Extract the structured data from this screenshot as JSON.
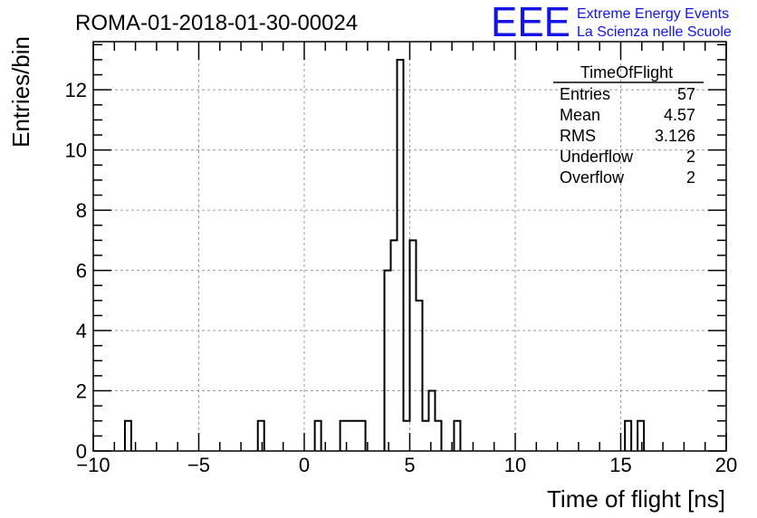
{
  "chart_data": {
    "type": "bar",
    "histogram": true,
    "title": "ROMA-01-2018-01-30-00024",
    "xlabel": "Time of flight [ns]",
    "ylabel": "Entries/bin",
    "xlim": [
      -10,
      20
    ],
    "ylim": [
      0,
      13.6
    ],
    "grid": true,
    "x_tick_labels": [
      "−10",
      "−5",
      "0",
      "5",
      "10",
      "15",
      "20"
    ],
    "y_tick_labels": [
      "0",
      "2",
      "4",
      "6",
      "8",
      "10",
      "12"
    ],
    "bin_width": 0.3,
    "bins": [
      {
        "x": -8.5,
        "value": 1
      },
      {
        "x": -2.2,
        "value": 1
      },
      {
        "x": 0.5,
        "value": 1
      },
      {
        "x": 1.7,
        "value": 1
      },
      {
        "x": 2.0,
        "value": 1
      },
      {
        "x": 2.3,
        "value": 1
      },
      {
        "x": 2.6,
        "value": 1
      },
      {
        "x": 3.8,
        "value": 6
      },
      {
        "x": 4.1,
        "value": 7
      },
      {
        "x": 4.4,
        "value": 13
      },
      {
        "x": 4.7,
        "value": 1
      },
      {
        "x": 5.0,
        "value": 7
      },
      {
        "x": 5.3,
        "value": 5
      },
      {
        "x": 5.6,
        "value": 1
      },
      {
        "x": 5.9,
        "value": 2
      },
      {
        "x": 6.2,
        "value": 1
      },
      {
        "x": 7.1,
        "value": 1
      },
      {
        "x": 15.2,
        "value": 1
      },
      {
        "x": 15.8,
        "value": 1
      }
    ],
    "stats_box": {
      "title": "TimeOfFlight",
      "placement": "top-right",
      "rows": [
        {
          "label": "Entries",
          "value": "57"
        },
        {
          "label": "Mean",
          "value": "4.57"
        },
        {
          "label": "RMS",
          "value": "3.126"
        },
        {
          "label": "Underflow",
          "value": "2"
        },
        {
          "label": "Overflow",
          "value": "2"
        }
      ]
    }
  },
  "logo": {
    "text": "EEE",
    "line1": "Extreme Energy Events",
    "line2": "La Scienza nelle Scuole",
    "color": "#1414e6"
  }
}
